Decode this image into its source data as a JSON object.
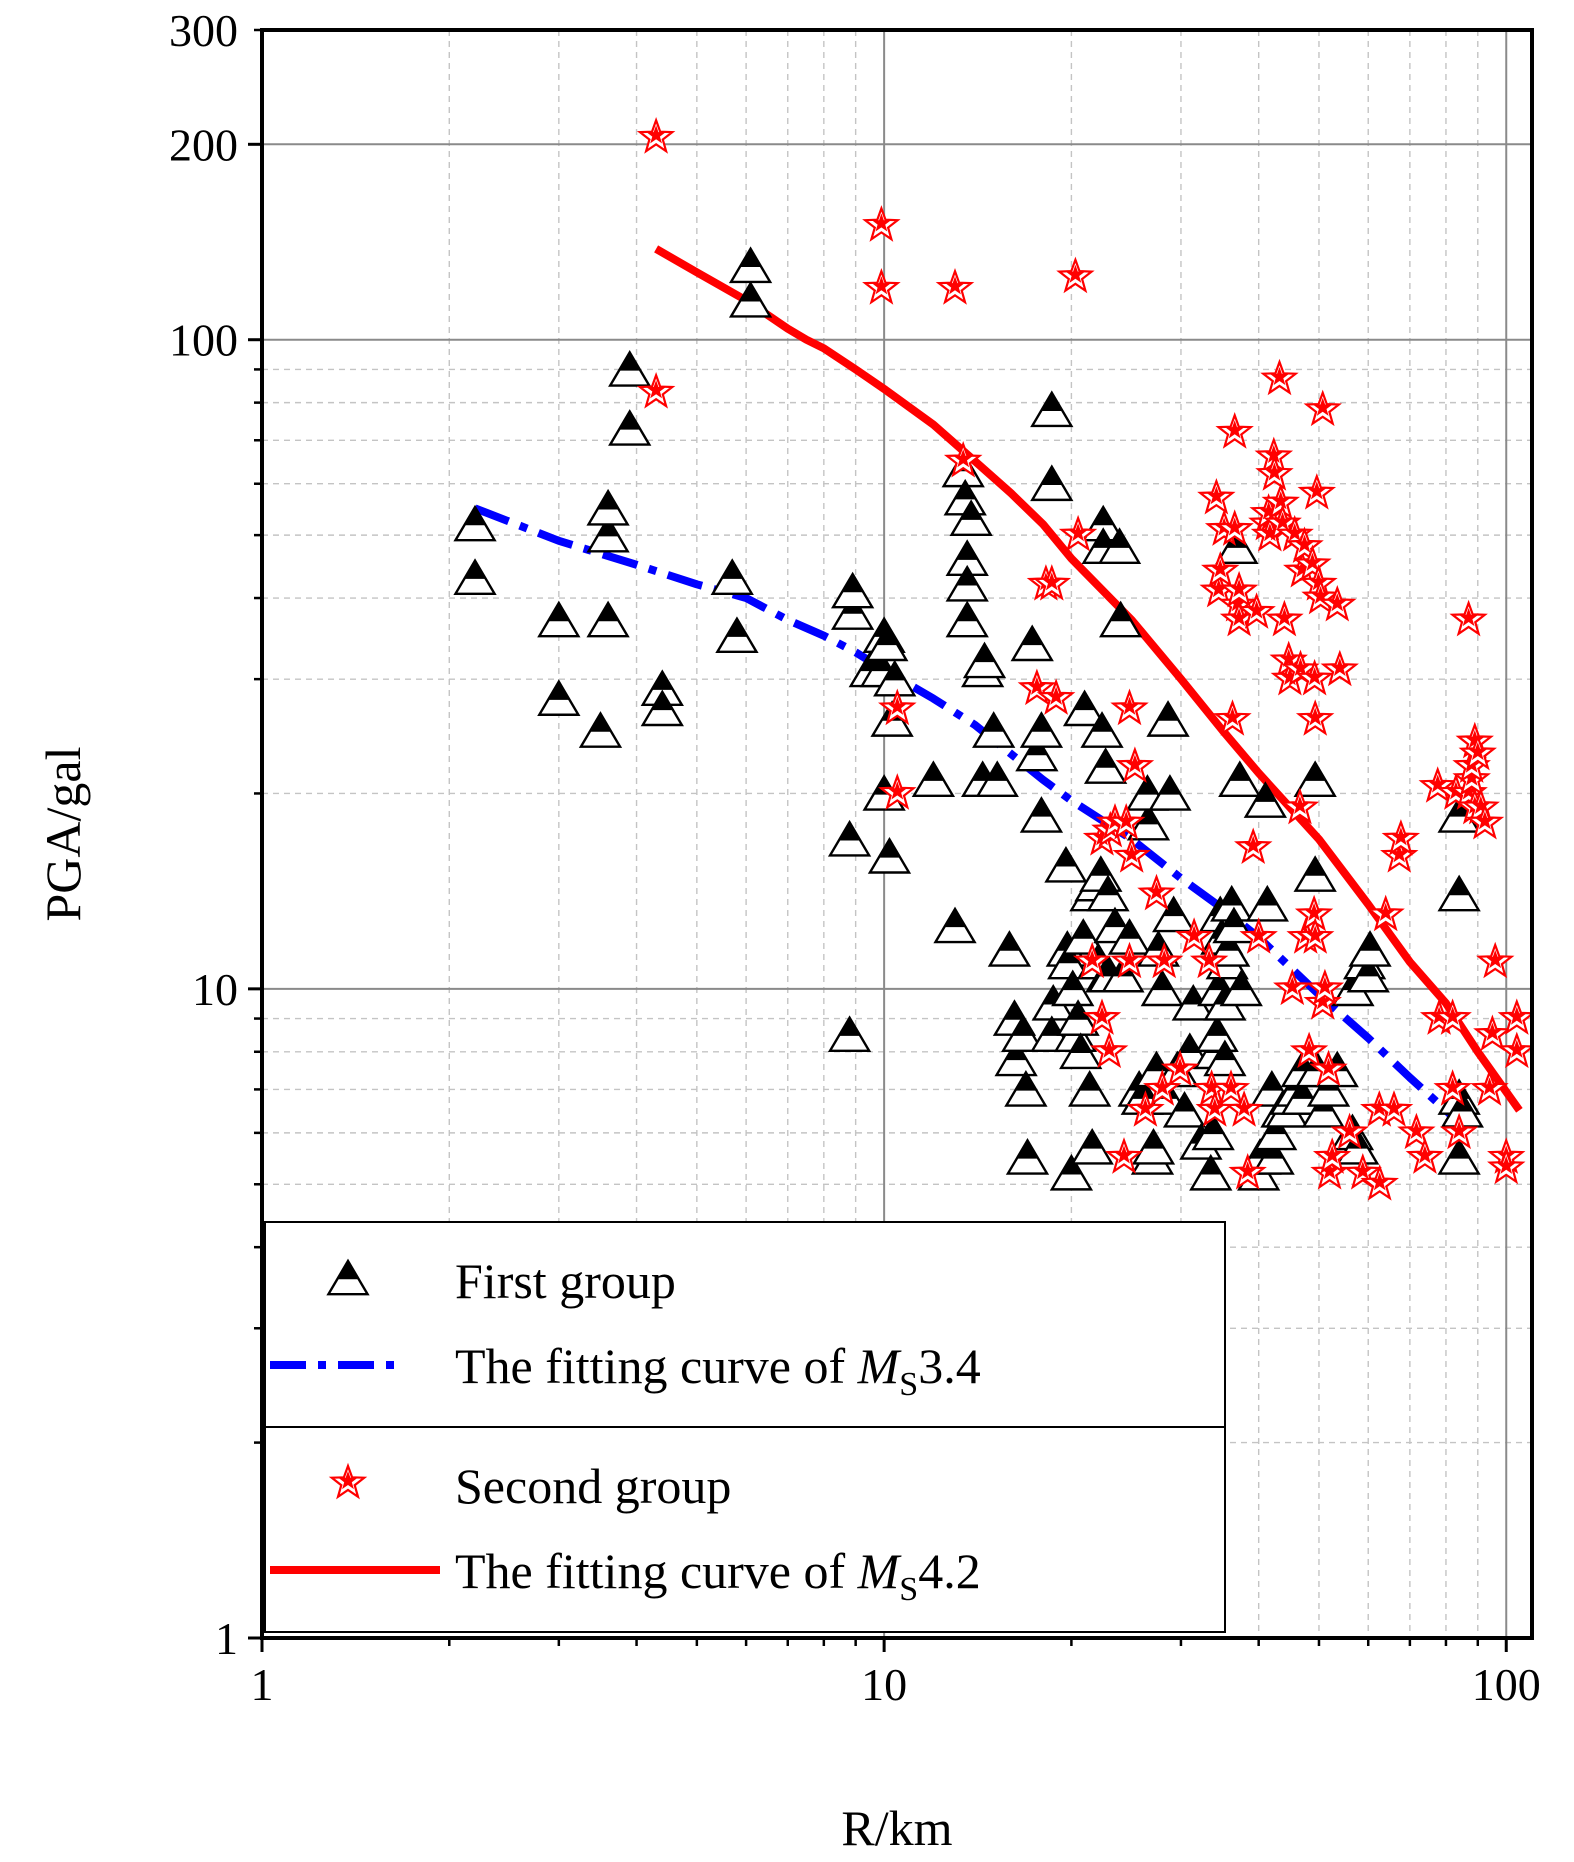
{
  "chart_data": {
    "type": "scatter",
    "xscale": "log",
    "yscale": "log",
    "xlim": [
      1,
      110
    ],
    "ylim": [
      1,
      300
    ],
    "xlabel": "R/km",
    "ylabel": "PGA/gal",
    "grid": true,
    "x_ticks": [
      {
        "value": 1,
        "label": "1"
      },
      {
        "value": 10,
        "label": "10"
      },
      {
        "value": 100,
        "label": "100"
      }
    ],
    "y_ticks": [
      {
        "value": 1,
        "label": "1"
      },
      {
        "value": 10,
        "label": "10"
      },
      {
        "value": 100,
        "label": "100"
      },
      {
        "value": 200,
        "label": "200"
      },
      {
        "value": 300,
        "label": "300"
      }
    ],
    "legend_position": "bottom-left",
    "legend": [
      {
        "label": "First group",
        "marker": "triangle",
        "color": "#000000"
      },
      {
        "label_prefix": "The fitting curve of ",
        "label_symbol": "M",
        "label_subscript": "S",
        "label_value": "3.4",
        "line": "dash-dot",
        "color": "#0000ff"
      },
      {
        "label": "Second group",
        "marker": "star",
        "color": "#ff0000"
      },
      {
        "label_prefix": "The fitting curve of ",
        "label_symbol": "M",
        "label_subscript": "S",
        "label_value": "4.2",
        "line": "solid",
        "color": "#ff0000"
      }
    ],
    "series": [
      {
        "name": "First group",
        "marker": "triangle",
        "color": "#000000",
        "points": [
          [
            2.2,
            52
          ],
          [
            2.2,
            43
          ],
          [
            3,
            37
          ],
          [
            3,
            28
          ],
          [
            3.5,
            25
          ],
          [
            3.6,
            37
          ],
          [
            3.6,
            50
          ],
          [
            3.6,
            55
          ],
          [
            3.9,
            73
          ],
          [
            3.9,
            90
          ],
          [
            4.4,
            29
          ],
          [
            4.4,
            27
          ],
          [
            5.7,
            43
          ],
          [
            5.8,
            35
          ],
          [
            6.1,
            130
          ],
          [
            6.1,
            115
          ],
          [
            8.8,
            17
          ],
          [
            8.8,
            8.5
          ],
          [
            8.9,
            38
          ],
          [
            8.9,
            41
          ],
          [
            9.5,
            31
          ],
          [
            9.9,
            31
          ],
          [
            10,
            35
          ],
          [
            10,
            20
          ],
          [
            10.1,
            34
          ],
          [
            10.2,
            16
          ],
          [
            10.3,
            26
          ],
          [
            10.4,
            30
          ],
          [
            12,
            21
          ],
          [
            13,
            12.5
          ],
          [
            13.4,
            63
          ],
          [
            13.5,
            57
          ],
          [
            13.6,
            46
          ],
          [
            13.6,
            42
          ],
          [
            13.6,
            37
          ],
          [
            13.8,
            53
          ],
          [
            14.4,
            31
          ],
          [
            14.5,
            32
          ],
          [
            14.4,
            21
          ],
          [
            15,
            25
          ],
          [
            15.2,
            21
          ],
          [
            15.9,
            11.5
          ],
          [
            16.2,
            9
          ],
          [
            16.3,
            7.8
          ],
          [
            16.7,
            8.5
          ],
          [
            16.9,
            7
          ],
          [
            17,
            5.5
          ],
          [
            17.3,
            34
          ],
          [
            17.6,
            23
          ],
          [
            17.9,
            18.5
          ],
          [
            17.9,
            25
          ],
          [
            18.6,
            78
          ],
          [
            18.6,
            60
          ],
          [
            18.7,
            9.5
          ],
          [
            18.6,
            8.5
          ],
          [
            19.6,
            15.5
          ],
          [
            19.7,
            11.5
          ],
          [
            19.8,
            11
          ],
          [
            20,
            5.2
          ],
          [
            20.1,
            10
          ],
          [
            20.3,
            8.5
          ],
          [
            20.5,
            9
          ],
          [
            20.7,
            8
          ],
          [
            20.9,
            12
          ],
          [
            21,
            27
          ],
          [
            21.4,
            7
          ],
          [
            21.5,
            14
          ],
          [
            21.6,
            5.7
          ],
          [
            21.9,
            14.5
          ],
          [
            22.1,
            11
          ],
          [
            22.4,
            25
          ],
          [
            22.3,
            15
          ],
          [
            22.5,
            52
          ],
          [
            22.5,
            48
          ],
          [
            22.7,
            22
          ],
          [
            22.8,
            10.5
          ],
          [
            22.9,
            14
          ],
          [
            23,
            10.5
          ],
          [
            23.5,
            12.5
          ],
          [
            23.9,
            48
          ],
          [
            24,
            37
          ],
          [
            24.2,
            10.5
          ],
          [
            24.8,
            12
          ],
          [
            25.7,
            7
          ],
          [
            26,
            6.8
          ],
          [
            26.6,
            18
          ],
          [
            26.5,
            20
          ],
          [
            27,
            5.5
          ],
          [
            27.1,
            5.7
          ],
          [
            27.4,
            7.5
          ],
          [
            27.6,
            11.5
          ],
          [
            28,
            10
          ],
          [
            28.5,
            6.8
          ],
          [
            28.6,
            26
          ],
          [
            28.8,
            20
          ],
          [
            29.2,
            13
          ],
          [
            29.6,
            7.5
          ],
          [
            30.4,
            6.5
          ],
          [
            31,
            8
          ],
          [
            31.4,
            9.5
          ],
          [
            32.3,
            5.8
          ],
          [
            33.5,
            5.2
          ],
          [
            33.8,
            6
          ],
          [
            34.1,
            8
          ],
          [
            34.3,
            8.5
          ],
          [
            34.5,
            10
          ],
          [
            34.7,
            13
          ],
          [
            34.9,
            12
          ],
          [
            35.3,
            7.8
          ],
          [
            35.3,
            9.5
          ],
          [
            35.6,
            11
          ],
          [
            35.8,
            11.5
          ],
          [
            36.2,
            13.5
          ],
          [
            36.5,
            12.5
          ],
          [
            36.9,
            48
          ],
          [
            37.3,
            21
          ],
          [
            37.5,
            10
          ],
          [
            40,
            5.2
          ],
          [
            40.2,
            5.5
          ],
          [
            41,
            19.5
          ],
          [
            41.3,
            13.5
          ],
          [
            42,
            7
          ],
          [
            42.2,
            5.5
          ],
          [
            42.6,
            6
          ],
          [
            43.6,
            6.5
          ],
          [
            44.4,
            6.5
          ],
          [
            45.1,
            6.8
          ],
          [
            46,
            7
          ],
          [
            47,
            6.8
          ],
          [
            47,
            7.5
          ],
          [
            49.3,
            21
          ],
          [
            49.3,
            15
          ],
          [
            49.6,
            7.5
          ],
          [
            50.8,
            6.5
          ],
          [
            51.8,
            7
          ],
          [
            53.5,
            7.5
          ],
          [
            56.6,
            6
          ],
          [
            56.7,
            10
          ],
          [
            57.7,
            5.7
          ],
          [
            59.2,
            11
          ],
          [
            60,
            10.5
          ],
          [
            60.4,
            11.5
          ],
          [
            84,
            18.5
          ],
          [
            84,
            14
          ],
          [
            84,
            6.8
          ],
          [
            84,
            5.5
          ],
          [
            85,
            6.5
          ]
        ]
      },
      {
        "name": "Second group",
        "marker": "star",
        "color": "#ff0000",
        "points": [
          [
            4.3,
            205
          ],
          [
            4.3,
            83
          ],
          [
            9.9,
            150
          ],
          [
            9.9,
            120
          ],
          [
            10.5,
            27
          ],
          [
            10.5,
            20
          ],
          [
            13,
            120
          ],
          [
            13.4,
            65
          ],
          [
            17.6,
            29
          ],
          [
            18.2,
            42
          ],
          [
            18.6,
            42
          ],
          [
            18.9,
            28
          ],
          [
            20.3,
            125
          ],
          [
            20.5,
            50
          ],
          [
            21.6,
            11
          ],
          [
            22.4,
            9
          ],
          [
            22.4,
            17
          ],
          [
            23,
            8
          ],
          [
            23.1,
            17.5
          ],
          [
            23.5,
            18
          ],
          [
            24.3,
            5.5
          ],
          [
            24.5,
            18
          ],
          [
            24.8,
            11
          ],
          [
            24.8,
            27
          ],
          [
            25,
            16
          ],
          [
            25.3,
            22
          ],
          [
            26.3,
            6.5
          ],
          [
            27.4,
            14
          ],
          [
            28,
            7
          ],
          [
            28.2,
            11
          ],
          [
            29.9,
            7.5
          ],
          [
            31.5,
            12
          ],
          [
            33.3,
            11
          ],
          [
            33.6,
            7
          ],
          [
            34,
            6.5
          ],
          [
            34.2,
            57
          ],
          [
            34.5,
            41
          ],
          [
            34.7,
            44
          ],
          [
            35.2,
            51
          ],
          [
            36.1,
            7
          ],
          [
            36.3,
            26
          ],
          [
            36.6,
            72
          ],
          [
            36.6,
            51
          ],
          [
            37,
            39
          ],
          [
            37.2,
            41
          ],
          [
            37.2,
            37
          ],
          [
            37.9,
            6.5
          ],
          [
            38.4,
            5.2
          ],
          [
            39.2,
            16.5
          ],
          [
            39.7,
            38
          ],
          [
            40,
            12
          ],
          [
            41.3,
            52
          ],
          [
            41.5,
            54
          ],
          [
            41.7,
            50
          ],
          [
            42.3,
            66
          ],
          [
            42.4,
            62
          ],
          [
            43.2,
            87
          ],
          [
            43.4,
            56
          ],
          [
            43.7,
            52
          ],
          [
            44,
            37
          ],
          [
            44.7,
            32
          ],
          [
            44.9,
            30
          ],
          [
            45.3,
            10
          ],
          [
            45.7,
            50
          ],
          [
            46.6,
            19
          ],
          [
            46.7,
            31
          ],
          [
            47,
            44
          ],
          [
            47.4,
            48
          ],
          [
            47.6,
            12
          ],
          [
            48.2,
            8
          ],
          [
            48.8,
            45
          ],
          [
            49.1,
            13
          ],
          [
            49.3,
            12
          ],
          [
            49.2,
            30
          ],
          [
            49.3,
            26
          ],
          [
            49.6,
            58
          ],
          [
            49.9,
            42
          ],
          [
            50.3,
            40
          ],
          [
            50.7,
            78
          ],
          [
            50.7,
            9.5
          ],
          [
            51.1,
            10
          ],
          [
            51.8,
            7.5
          ],
          [
            52,
            5.2
          ],
          [
            52.5,
            5.5
          ],
          [
            53.5,
            39
          ],
          [
            54,
            31
          ],
          [
            56,
            6
          ],
          [
            58.8,
            5.2
          ],
          [
            62.5,
            6.5
          ],
          [
            62.6,
            5
          ],
          [
            64,
            13
          ],
          [
            66,
            6.5
          ],
          [
            67.3,
            16
          ],
          [
            67.7,
            17
          ],
          [
            71.7,
            6
          ],
          [
            74,
            5.5
          ],
          [
            77.6,
            20.5
          ],
          [
            78,
            9
          ],
          [
            82,
            9
          ],
          [
            82,
            7
          ],
          [
            83,
            20
          ],
          [
            84,
            6
          ],
          [
            87,
            37
          ],
          [
            87,
            20
          ],
          [
            88,
            21
          ],
          [
            88,
            22
          ],
          [
            89,
            24
          ],
          [
            89,
            19
          ],
          [
            90,
            23
          ],
          [
            91,
            19
          ],
          [
            92.4,
            18
          ],
          [
            94,
            7
          ],
          [
            95,
            8.5
          ],
          [
            96,
            11
          ],
          [
            100,
            5.5
          ],
          [
            100,
            5.3
          ],
          [
            104,
            9
          ],
          [
            104,
            8
          ]
        ]
      },
      {
        "name": "The fitting curve of MS3.4",
        "line": "dash-dot",
        "color": "#0000ff",
        "points": [
          [
            2.2,
            55
          ],
          [
            3,
            49
          ],
          [
            4,
            45
          ],
          [
            5,
            42
          ],
          [
            6,
            40
          ],
          [
            7,
            37
          ],
          [
            8,
            35
          ],
          [
            9,
            33
          ],
          [
            10,
            31
          ],
          [
            12,
            28
          ],
          [
            14,
            25.5
          ],
          [
            16,
            23
          ],
          [
            18,
            21
          ],
          [
            20,
            19.5
          ],
          [
            25,
            17
          ],
          [
            30,
            14.8
          ],
          [
            35,
            13.3
          ],
          [
            40,
            12
          ],
          [
            50,
            9.8
          ],
          [
            60,
            8.4
          ],
          [
            70,
            7.3
          ],
          [
            80,
            6.5
          ],
          [
            87,
            6
          ]
        ]
      },
      {
        "name": "The fitting curve of MS4.2",
        "line": "solid",
        "color": "#ff0000",
        "points": [
          [
            4.3,
            138
          ],
          [
            5,
            127
          ],
          [
            6,
            115
          ],
          [
            7,
            104
          ],
          [
            7.5,
            100
          ],
          [
            8,
            97
          ],
          [
            9,
            90
          ],
          [
            10,
            84
          ],
          [
            12,
            74
          ],
          [
            14,
            65
          ],
          [
            16,
            58
          ],
          [
            18,
            52
          ],
          [
            20,
            46
          ],
          [
            25,
            37
          ],
          [
            30,
            30
          ],
          [
            35,
            25
          ],
          [
            40,
            21.5
          ],
          [
            50,
            17
          ],
          [
            60,
            13.5
          ],
          [
            70,
            11
          ],
          [
            80,
            9.5
          ],
          [
            90,
            8
          ],
          [
            105,
            6.5
          ]
        ]
      }
    ]
  }
}
